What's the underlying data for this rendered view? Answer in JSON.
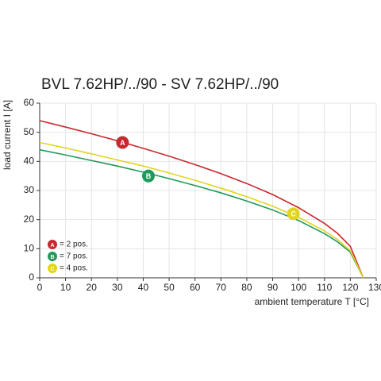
{
  "chart_data": {
    "type": "line",
    "title": "BVL 7.62HP/../90 - SV 7.62HP/../90",
    "y_label": "load current I [A]",
    "x_label": "ambient temperature T [°C]",
    "x": [
      0,
      10,
      20,
      30,
      40,
      50,
      60,
      70,
      80,
      90,
      100,
      110,
      115,
      120,
      125
    ],
    "series": [
      {
        "name": "= 2 pos.",
        "marker": "A",
        "color": "#c8282d",
        "marker_x": 32,
        "marker_y": 46.5,
        "values": [
          54,
          51.8,
          49.5,
          47.1,
          44.5,
          41.8,
          38.9,
          35.8,
          32.4,
          28.6,
          24.1,
          18.7,
          15.3,
          10.8,
          0
        ]
      },
      {
        "name": "= 7 pos.",
        "marker": "B",
        "color": "#1f9a5a",
        "marker_x": 42,
        "marker_y": 35,
        "values": [
          44,
          42.2,
          40.3,
          38.4,
          36.3,
          34.1,
          31.7,
          29.2,
          26.4,
          23.3,
          19.7,
          15.2,
          12.4,
          8.8,
          0
        ]
      },
      {
        "name": "= 4 pos.",
        "marker": "C",
        "color": "#e2d51e",
        "marker_x": 98,
        "marker_y": 22,
        "values": [
          46.5,
          44.6,
          42.6,
          40.5,
          38.4,
          36.0,
          33.5,
          30.8,
          27.9,
          24.6,
          20.8,
          16.1,
          13.2,
          9.3,
          0
        ]
      }
    ],
    "xlim": [
      0,
      130
    ],
    "xticks": [
      0,
      10,
      20,
      30,
      40,
      50,
      60,
      70,
      80,
      90,
      100,
      110,
      120,
      130
    ],
    "ylim": [
      0,
      60
    ],
    "yticks": [
      0,
      10,
      20,
      30,
      40,
      50,
      60
    ],
    "grid": true
  }
}
